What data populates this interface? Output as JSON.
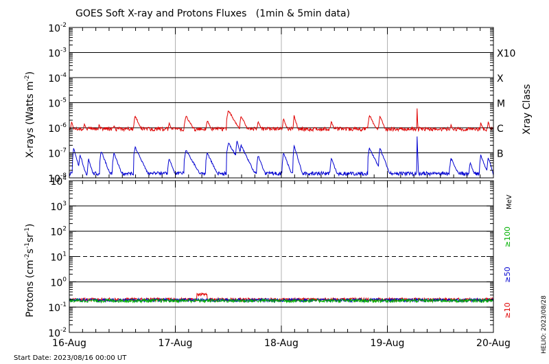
{
  "chart_data": [
    {
      "type": "line",
      "title": "GOES Soft X-ray and Protons Fluxes   (1min & 5min data)",
      "ylabel_main": "X-rays (Watts m",
      "ylabel_sup": "-2",
      "ylabel_close": ")",
      "yscale": "log",
      "ylim": [
        1e-08,
        0.01
      ],
      "ytick_exponents": [
        "-2",
        "-3",
        "-4",
        "-5",
        "-6",
        "-7",
        "-8"
      ],
      "ytick_base": "10",
      "gridlines": [
        0.001,
        0.0001,
        1e-05,
        1e-06,
        1e-07
      ],
      "class_axis_label": "Xray Class",
      "class_labels": [
        {
          "label": "X10",
          "value": 0.001
        },
        {
          "label": "X",
          "value": 0.0001
        },
        {
          "label": "M",
          "value": 1e-05
        },
        {
          "label": "C",
          "value": 1e-06
        },
        {
          "label": "B",
          "value": 1e-07
        }
      ],
      "xlim": [
        0,
        4
      ],
      "series": [
        {
          "color": "#e00000",
          "baseline": 9e-07,
          "events": [
            {
              "day": 0.02,
              "peak": 1.8e-06,
              "width": 0.03
            },
            {
              "day": 0.14,
              "peak": 1.5e-06,
              "width": 0.04
            },
            {
              "day": 0.28,
              "peak": 1.4e-06,
              "width": 0.03
            },
            {
              "day": 0.42,
              "peak": 1.3e-06,
              "width": 0.04
            },
            {
              "day": 0.62,
              "peak": 3e-06,
              "width": 0.05
            },
            {
              "day": 0.94,
              "peak": 1.6e-06,
              "width": 0.04
            },
            {
              "day": 1.1,
              "peak": 3e-06,
              "width": 0.06
            },
            {
              "day": 1.3,
              "peak": 2e-06,
              "width": 0.05
            },
            {
              "day": 1.5,
              "peak": 5e-06,
              "width": 0.06
            },
            {
              "day": 1.62,
              "peak": 3e-06,
              "width": 0.05
            },
            {
              "day": 1.78,
              "peak": 1.8e-06,
              "width": 0.04
            },
            {
              "day": 2.02,
              "peak": 2.3e-06,
              "width": 0.04
            },
            {
              "day": 2.12,
              "peak": 3e-06,
              "width": 0.03
            },
            {
              "day": 2.47,
              "peak": 1.8e-06,
              "width": 0.04
            },
            {
              "day": 2.83,
              "peak": 3.2e-06,
              "width": 0.05
            },
            {
              "day": 2.93,
              "peak": 3e-06,
              "width": 0.04
            },
            {
              "day": 3.28,
              "peak": 6e-06,
              "width": 0.004
            },
            {
              "day": 3.6,
              "peak": 1.3e-06,
              "width": 0.05
            },
            {
              "day": 3.88,
              "peak": 1.6e-06,
              "width": 0.04
            },
            {
              "day": 3.95,
              "peak": 1.8e-06,
              "width": 0.03
            }
          ]
        },
        {
          "color": "#0000d0",
          "baseline": 1.5e-08,
          "events": [
            {
              "day": 0.04,
              "peak": 1.5e-07,
              "width": 0.03
            },
            {
              "day": 0.1,
              "peak": 9e-08,
              "width": 0.03
            },
            {
              "day": 0.18,
              "peak": 6e-08,
              "width": 0.03
            },
            {
              "day": 0.3,
              "peak": 1.2e-07,
              "width": 0.04
            },
            {
              "day": 0.42,
              "peak": 1e-07,
              "width": 0.04
            },
            {
              "day": 0.62,
              "peak": 1.7e-07,
              "width": 0.05
            },
            {
              "day": 0.94,
              "peak": 6e-08,
              "width": 0.04
            },
            {
              "day": 1.1,
              "peak": 1.3e-07,
              "width": 0.06
            },
            {
              "day": 1.3,
              "peak": 1e-07,
              "width": 0.05
            },
            {
              "day": 1.5,
              "peak": 2.5e-07,
              "width": 0.06
            },
            {
              "day": 1.58,
              "peak": 3e-07,
              "width": 0.03
            },
            {
              "day": 1.62,
              "peak": 2e-07,
              "width": 0.05
            },
            {
              "day": 1.78,
              "peak": 8e-08,
              "width": 0.04
            },
            {
              "day": 2.02,
              "peak": 1e-07,
              "width": 0.04
            },
            {
              "day": 2.12,
              "peak": 2e-07,
              "width": 0.03
            },
            {
              "day": 2.47,
              "peak": 6e-08,
              "width": 0.04
            },
            {
              "day": 2.83,
              "peak": 1.6e-07,
              "width": 0.05
            },
            {
              "day": 2.93,
              "peak": 1.5e-07,
              "width": 0.04
            },
            {
              "day": 3.28,
              "peak": 4.5e-07,
              "width": 0.004
            },
            {
              "day": 3.6,
              "peak": 6e-08,
              "width": 0.05
            },
            {
              "day": 3.78,
              "peak": 4e-08,
              "width": 0.04
            },
            {
              "day": 3.88,
              "peak": 8e-08,
              "width": 0.04
            },
            {
              "day": 3.95,
              "peak": 7e-08,
              "width": 0.03
            }
          ]
        }
      ]
    },
    {
      "type": "line",
      "ylabel_main": "Protons (cm",
      "ylabel_sup1": "-2",
      "ylabel_mid": "s",
      "ylabel_sup2": "-1",
      "ylabel_mid2": "sr",
      "ylabel_sup3": "-1",
      "ylabel_close": ")",
      "yscale": "log",
      "ylim": [
        0.01,
        10000
      ],
      "ytick_exponents": [
        "4",
        "3",
        "2",
        "1",
        "0",
        "-1",
        "-2"
      ],
      "ytick_base": "10",
      "gridlines": [
        1000,
        100,
        1,
        0.1
      ],
      "dashed_line": 10,
      "energy_unit": "MeV",
      "energy_labels": [
        {
          "text": "≥100",
          "color": "#00b000"
        },
        {
          "text": "≥50",
          "color": "#0000d0"
        },
        {
          "text": "≥10",
          "color": "#e00000"
        }
      ],
      "xlim": [
        0,
        4
      ],
      "series": [
        {
          "name": "≥10",
          "color": "#e00000",
          "level": 0.2,
          "bump": {
            "day": 1.25,
            "peak": 0.32,
            "width": 0.05
          }
        },
        {
          "name": "≥50",
          "color": "#0000d0",
          "level": 0.19
        },
        {
          "name": "≥100",
          "color": "#00b000",
          "level": 0.18
        }
      ]
    }
  ],
  "xaxis": {
    "ticks": [
      {
        "day": 0,
        "label": "16-Aug"
      },
      {
        "day": 1,
        "label": "17-Aug"
      },
      {
        "day": 2,
        "label": "18-Aug"
      },
      {
        "day": 3,
        "label": "19-Aug"
      },
      {
        "day": 4,
        "label": "20-Aug"
      }
    ],
    "vertical_grid_days": [
      1,
      2,
      3
    ]
  },
  "footer": {
    "start_date": "Start Date: 2023/08/16 00:00 UT",
    "credit": "HELIO: 2023/08/28"
  }
}
